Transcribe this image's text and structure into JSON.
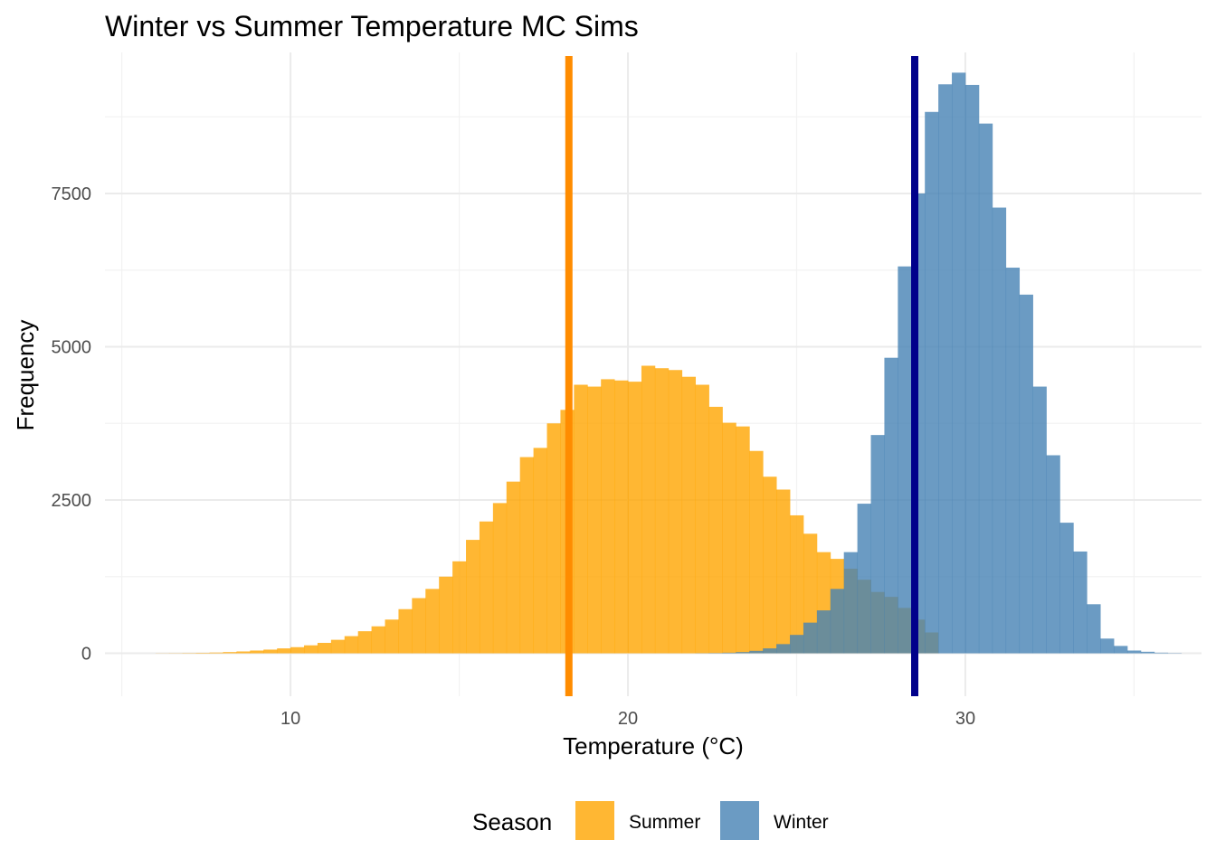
{
  "chart_data": {
    "type": "histogram",
    "title": "Winter vs Summer Temperature MC Sims",
    "xlabel": "Temperature (°C)",
    "ylabel": "Frequency",
    "xlim": [
      4.5,
      37
    ],
    "ylim": [
      -700,
      9800
    ],
    "x_ticks": [
      10,
      20,
      30
    ],
    "y_ticks": [
      0,
      2500,
      5000,
      7500
    ],
    "x_minor_gridlines": [
      5,
      15,
      25,
      35
    ],
    "y_minor_gridlines": [
      1250,
      3750,
      6250,
      8750
    ],
    "grid": true,
    "legend": {
      "title": "Season",
      "position": "bottom"
    },
    "bin_width": 0.4,
    "series": [
      {
        "name": "Summer",
        "color": "#FFA500",
        "opacity": 0.8,
        "bin_start": 6.0,
        "counts": [
          2,
          3,
          5,
          8,
          12,
          20,
          30,
          45,
          60,
          80,
          100,
          130,
          170,
          220,
          280,
          360,
          440,
          550,
          720,
          900,
          1050,
          1250,
          1500,
          1850,
          2150,
          2450,
          2800,
          3200,
          3350,
          3750,
          3970,
          4380,
          4350,
          4470,
          4450,
          4430,
          4690,
          4650,
          4620,
          4510,
          4380,
          4020,
          3760,
          3700,
          3300,
          2880,
          2670,
          2250,
          1950,
          1650,
          1540,
          1380,
          1200,
          1000,
          920,
          740,
          550,
          340
        ]
      },
      {
        "name": "Winter",
        "color": "#4682B4",
        "opacity": 0.8,
        "bin_start": 22.0,
        "counts": [
          2,
          5,
          10,
          20,
          40,
          80,
          150,
          300,
          500,
          700,
          1050,
          1650,
          2440,
          3560,
          4820,
          6310,
          7500,
          8830,
          9280,
          9470,
          9270,
          8640,
          7270,
          6290,
          5850,
          4350,
          3230,
          2130,
          1660,
          800,
          240,
          120,
          45,
          25,
          10,
          5
        ]
      }
    ],
    "reference_lines": [
      {
        "name": "Summer",
        "x": 18.25,
        "color": "#FF8C00"
      },
      {
        "name": "Winter",
        "x": 28.5,
        "color": "#00008B"
      }
    ]
  }
}
